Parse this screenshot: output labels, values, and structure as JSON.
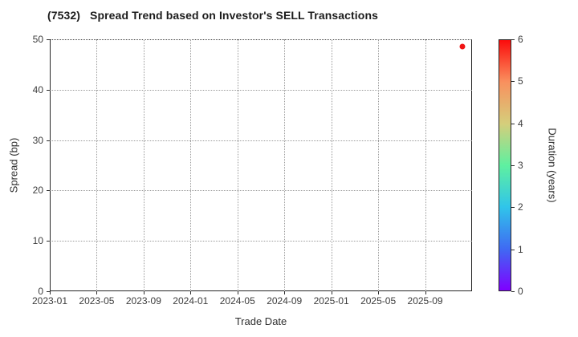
{
  "chart_data": {
    "type": "scatter",
    "title": "(7532)   Spread Trend based on Investor's SELL Transactions",
    "xlabel": "Trade Date",
    "ylabel": "Spread (bp)",
    "x_tick_labels": [
      "2023-01",
      "2023-05",
      "2023-09",
      "2024-01",
      "2024-05",
      "2024-09",
      "2025-01",
      "2025-05",
      "2025-09"
    ],
    "x_tick_months": [
      0,
      4,
      8,
      12,
      16,
      20,
      24,
      28,
      32
    ],
    "x_axis_span_months": 36,
    "y_ticks": [
      0,
      10,
      20,
      30,
      40,
      50
    ],
    "ylim": [
      0,
      50
    ],
    "grid": "dotted",
    "legend": "none",
    "points": [
      {
        "trade_date": "2025-12",
        "spread_bp": 48.6,
        "duration_years": 5.9,
        "x_months": 35.2,
        "color": "#f01414"
      }
    ],
    "colorbar": {
      "label": "Duration (years)",
      "min": 0,
      "max": 6,
      "ticks": [
        0,
        1,
        2,
        3,
        4,
        5,
        6
      ],
      "gradient_stops_bottom_to_top": [
        "#7f00ff",
        "#3f6af3",
        "#30c5ea",
        "#5ff0a0",
        "#d5ce7b",
        "#f9905e",
        "#fb0c0c"
      ]
    }
  }
}
